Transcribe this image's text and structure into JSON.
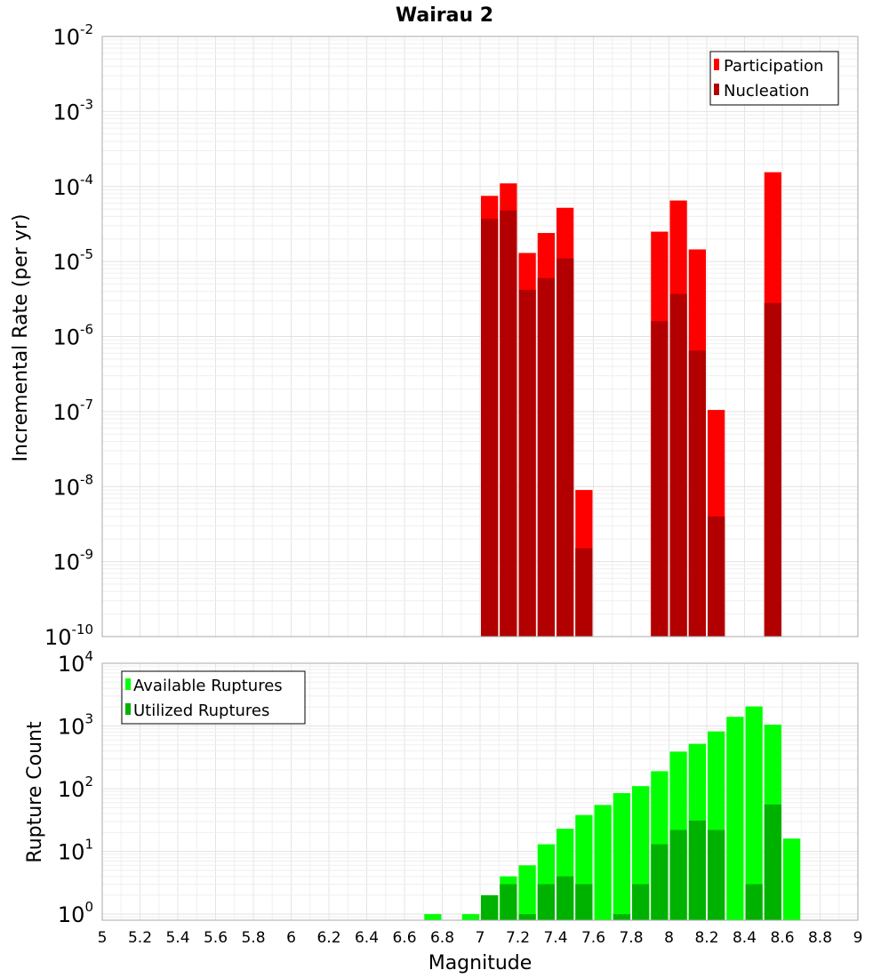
{
  "chart_data": [
    {
      "type": "bar",
      "title": "Wairau 2",
      "xlabel": "",
      "ylabel": "Incremental Rate (per yr)",
      "yscale": "log",
      "ylim": [
        1e-10,
        0.01
      ],
      "xlim": [
        5,
        9
      ],
      "yticks": [
        {
          "base": "10",
          "exp": "-10"
        },
        {
          "base": "10",
          "exp": "-9"
        },
        {
          "base": "10",
          "exp": "-8"
        },
        {
          "base": "10",
          "exp": "-7"
        },
        {
          "base": "10",
          "exp": "-6"
        },
        {
          "base": "10",
          "exp": "-5"
        },
        {
          "base": "10",
          "exp": "-4"
        },
        {
          "base": "10",
          "exp": "-3"
        },
        {
          "base": "10",
          "exp": "-2"
        }
      ],
      "grid": true,
      "legend_position": "top-right",
      "series": [
        {
          "name": "Participation",
          "color": "#ff0000",
          "x": [
            7.05,
            7.15,
            7.25,
            7.35,
            7.45,
            7.55,
            7.95,
            8.05,
            8.15,
            8.25,
            8.55
          ],
          "values": [
            7.5e-05,
            0.00011,
            1.3e-05,
            2.4e-05,
            5.2e-05,
            9e-09,
            2.5e-05,
            6.5e-05,
            1.45e-05,
            1.05e-07,
            0.000155
          ]
        },
        {
          "name": "Nucleation",
          "color": "#b20000",
          "x": [
            7.05,
            7.15,
            7.25,
            7.35,
            7.45,
            7.55,
            7.95,
            8.05,
            8.15,
            8.25,
            8.55
          ],
          "values": [
            3.7e-05,
            4.8e-05,
            4.2e-06,
            6e-06,
            1.1e-05,
            1.5e-09,
            1.6e-06,
            3.7e-06,
            6.5e-07,
            4e-09,
            2.8e-06
          ]
        }
      ]
    },
    {
      "type": "bar",
      "title": "",
      "xlabel": "Magnitude",
      "ylabel": "Rupture Count",
      "yscale": "log",
      "ylim": [
        0.8,
        10000
      ],
      "xlim": [
        5,
        9
      ],
      "yticks": [
        {
          "base": "10",
          "exp": "0"
        },
        {
          "base": "10",
          "exp": "1"
        },
        {
          "base": "10",
          "exp": "2"
        },
        {
          "base": "10",
          "exp": "3"
        },
        {
          "base": "10",
          "exp": "4"
        }
      ],
      "xticks": [
        "5",
        "5.2",
        "5.4",
        "5.6",
        "5.8",
        "6",
        "6.2",
        "6.4",
        "6.6",
        "6.8",
        "7",
        "7.2",
        "7.4",
        "7.6",
        "7.8",
        "8",
        "8.2",
        "8.4",
        "8.6",
        "8.8",
        "9"
      ],
      "grid": true,
      "legend_position": "top-left",
      "series": [
        {
          "name": "Available Ruptures",
          "color": "#00ff00",
          "x": [
            6.75,
            6.95,
            7.05,
            7.15,
            7.25,
            7.35,
            7.45,
            7.55,
            7.65,
            7.75,
            7.85,
            7.95,
            8.05,
            8.15,
            8.25,
            8.35,
            8.45,
            8.55,
            8.65
          ],
          "values": [
            1,
            1,
            2,
            4,
            6,
            13,
            23,
            38,
            55,
            85,
            110,
            190,
            390,
            520,
            820,
            1400,
            2050,
            1050,
            16
          ]
        },
        {
          "name": "Utilized Ruptures",
          "color": "#00b200",
          "x": [
            7.05,
            7.15,
            7.25,
            7.35,
            7.45,
            7.55,
            7.75,
            7.85,
            7.95,
            8.05,
            8.15,
            8.25,
            8.45,
            8.55
          ],
          "values": [
            2,
            3,
            1,
            3,
            4,
            3,
            1,
            3,
            13,
            22,
            31,
            22,
            3,
            56
          ]
        }
      ]
    }
  ]
}
